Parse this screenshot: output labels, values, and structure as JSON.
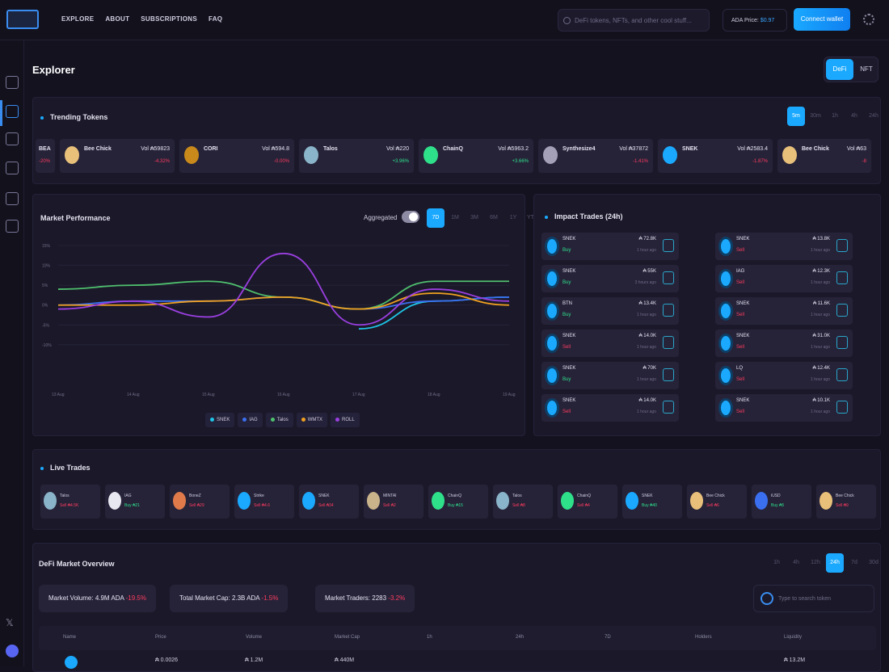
{
  "nav": {
    "items": [
      "EXPLORE",
      "ABOUT",
      "SUBSCRIPTIONS",
      "FAQ"
    ]
  },
  "search": {
    "placeholder": "DeFi tokens, NFTs, and other cool stuff..."
  },
  "price": {
    "label": "ADA Price:",
    "value": "$0.97"
  },
  "connect_label": "Connect wallet",
  "page_title": "Explorer",
  "mode_toggle": {
    "active": "DeFi",
    "inactive": "NFT"
  },
  "trending": {
    "title": "Trending Tokens",
    "timeframes": [
      "5m",
      "30m",
      "1h",
      "4h",
      "24h"
    ],
    "selected_timeframe": "5m",
    "tokens": [
      {
        "name": "BEA",
        "volume": "",
        "change": "-20%",
        "dir": "neg",
        "color": "#5a5577"
      },
      {
        "name": "Bee Chick",
        "volume": "Vol ₳59823",
        "change": "-4.32%",
        "dir": "neg",
        "color": "#e8c07a"
      },
      {
        "name": "CORI",
        "volume": "Vol ₳594.8",
        "change": "-0.00%",
        "dir": "neg",
        "color": "#c98a1b"
      },
      {
        "name": "Talos",
        "volume": "Vol ₳220",
        "change": "+3.96%",
        "dir": "pos",
        "color": "#8ab4c9"
      },
      {
        "name": "ChainQ",
        "volume": "Vol ₳5963.2",
        "change": "+3.66%",
        "dir": "pos",
        "color": "#2fe08a"
      },
      {
        "name": "Synthesize4",
        "volume": "Vol ₳37872",
        "change": "-1.41%",
        "dir": "neg",
        "color": "#a3a0b8"
      },
      {
        "name": "SNEK",
        "volume": "Vol ₳2583.4",
        "change": "-1.87%",
        "dir": "neg",
        "color": "#1aa9ff"
      },
      {
        "name": "Bee Chick",
        "volume": "Vol ₳63",
        "change": "-8",
        "dir": "neg",
        "color": "#e8c07a"
      }
    ]
  },
  "market_performance": {
    "title": "Market Performance",
    "aggregated_label": "Aggregated",
    "timeframes": [
      "7D",
      "1M",
      "3M",
      "6M",
      "1Y",
      "YTD"
    ],
    "selected_timeframe": "7D"
  },
  "chart_data": {
    "type": "line",
    "title": "Market Performance",
    "x": [
      "13 Aug",
      "14 Aug",
      "15 Aug",
      "16 Aug",
      "17 Aug",
      "18 Aug",
      "19 Aug"
    ],
    "ylim": [
      -20,
      15
    ],
    "yticks": [
      "15%",
      "10%",
      "5%",
      "0%",
      "-5%",
      "-10%"
    ],
    "grid": true,
    "series": [
      {
        "name": "SNEK",
        "color": "#1fc3e6",
        "values": [
          null,
          null,
          null,
          null,
          -6,
          1,
          2
        ]
      },
      {
        "name": "IAG",
        "color": "#3a6ff0",
        "values": [
          0,
          1,
          1,
          2,
          -1,
          1,
          2
        ]
      },
      {
        "name": "Talos",
        "color": "#4fc06e",
        "values": [
          4,
          5,
          6,
          2,
          -1,
          6,
          6
        ]
      },
      {
        "name": "WMTX",
        "color": "#f0a020",
        "values": [
          0,
          0,
          1,
          2,
          -1,
          3,
          0
        ]
      },
      {
        "name": "ROLL",
        "color": "#9a3fe0",
        "values": [
          -1,
          1,
          -3,
          13,
          -5,
          4,
          1
        ]
      }
    ]
  },
  "impact_trades": {
    "title": "Impact Trades (24h)",
    "trades": [
      {
        "name": "SNEK",
        "action": "Buy",
        "dir": "pos",
        "amount": "₳ 72.8K",
        "time": "1 hour ago"
      },
      {
        "name": "SNEK",
        "action": "Sell",
        "dir": "neg",
        "amount": "₳ 13.8K",
        "time": "1 hour ago"
      },
      {
        "name": "SNEK",
        "action": "Buy",
        "dir": "pos",
        "amount": "₳ 55K",
        "time": "3 hours ago"
      },
      {
        "name": "IAG",
        "action": "Sell",
        "dir": "neg",
        "amount": "₳ 12.3K",
        "time": "1 hour ago"
      },
      {
        "name": "BTN",
        "action": "Buy",
        "dir": "pos",
        "amount": "₳ 13.4K",
        "time": "1 hour ago"
      },
      {
        "name": "SNEK",
        "action": "Sell",
        "dir": "neg",
        "amount": "₳ 11.6K",
        "time": "1 hour ago"
      },
      {
        "name": "SNEK",
        "action": "Sell",
        "dir": "neg",
        "amount": "₳ 14.0K",
        "time": "1 hour ago"
      },
      {
        "name": "SNEK",
        "action": "Sell",
        "dir": "neg",
        "amount": "₳ 31.0K",
        "time": "1 hour ago"
      },
      {
        "name": "SNEK",
        "action": "Buy",
        "dir": "pos",
        "amount": "₳ 70K",
        "time": "1 hour ago"
      },
      {
        "name": "LQ",
        "action": "Sell",
        "dir": "neg",
        "amount": "₳ 12.4K",
        "time": "1 hour ago"
      },
      {
        "name": "SNEK",
        "action": "Sell",
        "dir": "neg",
        "amount": "₳ 14.0K",
        "time": "1 hour ago"
      },
      {
        "name": "SNEK",
        "action": "Sell",
        "dir": "neg",
        "amount": "₳ 10.1K",
        "time": "1 hour ago"
      }
    ]
  },
  "live_trades": {
    "title": "Live Trades",
    "trades": [
      {
        "name": "Talos",
        "action": "Sell ₳4.5K",
        "dir": "neg",
        "color": "#8ab4c9"
      },
      {
        "name": "IAG",
        "action": "Buy ₳21",
        "dir": "pos",
        "color": "#e8e8f0"
      },
      {
        "name": "BoneZ",
        "action": "Sell ₳29",
        "dir": "neg",
        "color": "#e07a4a"
      },
      {
        "name": "Strike",
        "action": "Sell ₳4.6",
        "dir": "neg",
        "color": "#1aa9ff"
      },
      {
        "name": "SNEK",
        "action": "Sell ₳34",
        "dir": "neg",
        "color": "#1aa9ff"
      },
      {
        "name": "MINTAI",
        "action": "Sell ₳2",
        "dir": "neg",
        "color": "#c9b38a"
      },
      {
        "name": "ChainQ",
        "action": "Buy ₳15",
        "dir": "pos",
        "color": "#2fe08a"
      },
      {
        "name": "Talos",
        "action": "Sell ₳8",
        "dir": "neg",
        "color": "#8ab4c9"
      },
      {
        "name": "ChainQ",
        "action": "Sell ₳4",
        "dir": "neg",
        "color": "#2fe08a"
      },
      {
        "name": "SNEK",
        "action": "Buy ₳40",
        "dir": "pos",
        "color": "#1aa9ff"
      },
      {
        "name": "Bee Chick",
        "action": "Sell ₳6",
        "dir": "neg",
        "color": "#e8c07a"
      },
      {
        "name": "iUSD",
        "action": "Buy ₳5",
        "dir": "pos",
        "color": "#3a6ff0"
      },
      {
        "name": "Bee Chick",
        "action": "Sell ₳9",
        "dir": "neg",
        "color": "#e8c07a"
      }
    ]
  },
  "overview": {
    "title": "DeFi Market Overview",
    "timeframes": [
      "1h",
      "4h",
      "12h",
      "24h",
      "7d",
      "30d"
    ],
    "selected_timeframe": "24h",
    "stats": [
      {
        "label": "Market Volume:",
        "value": "4.9M ADA",
        "change": "-19.5%"
      },
      {
        "label": "Total Market Cap:",
        "value": "2.3B ADA",
        "change": "-1.5%"
      },
      {
        "label": "Market Traders:",
        "value": "2283",
        "change": "-3.2%"
      }
    ],
    "search_placeholder": "Type to search token",
    "columns": [
      "Name",
      "Price",
      "Volume",
      "Market Cap",
      "1h",
      "24h",
      "7D",
      "Holders",
      "Liquidity"
    ],
    "first_row": {
      "price": "₳ 0.0026",
      "volume": "₳ 1.2M",
      "mcap": "₳ 440M",
      "liquidity": "₳ 13.2M"
    }
  }
}
